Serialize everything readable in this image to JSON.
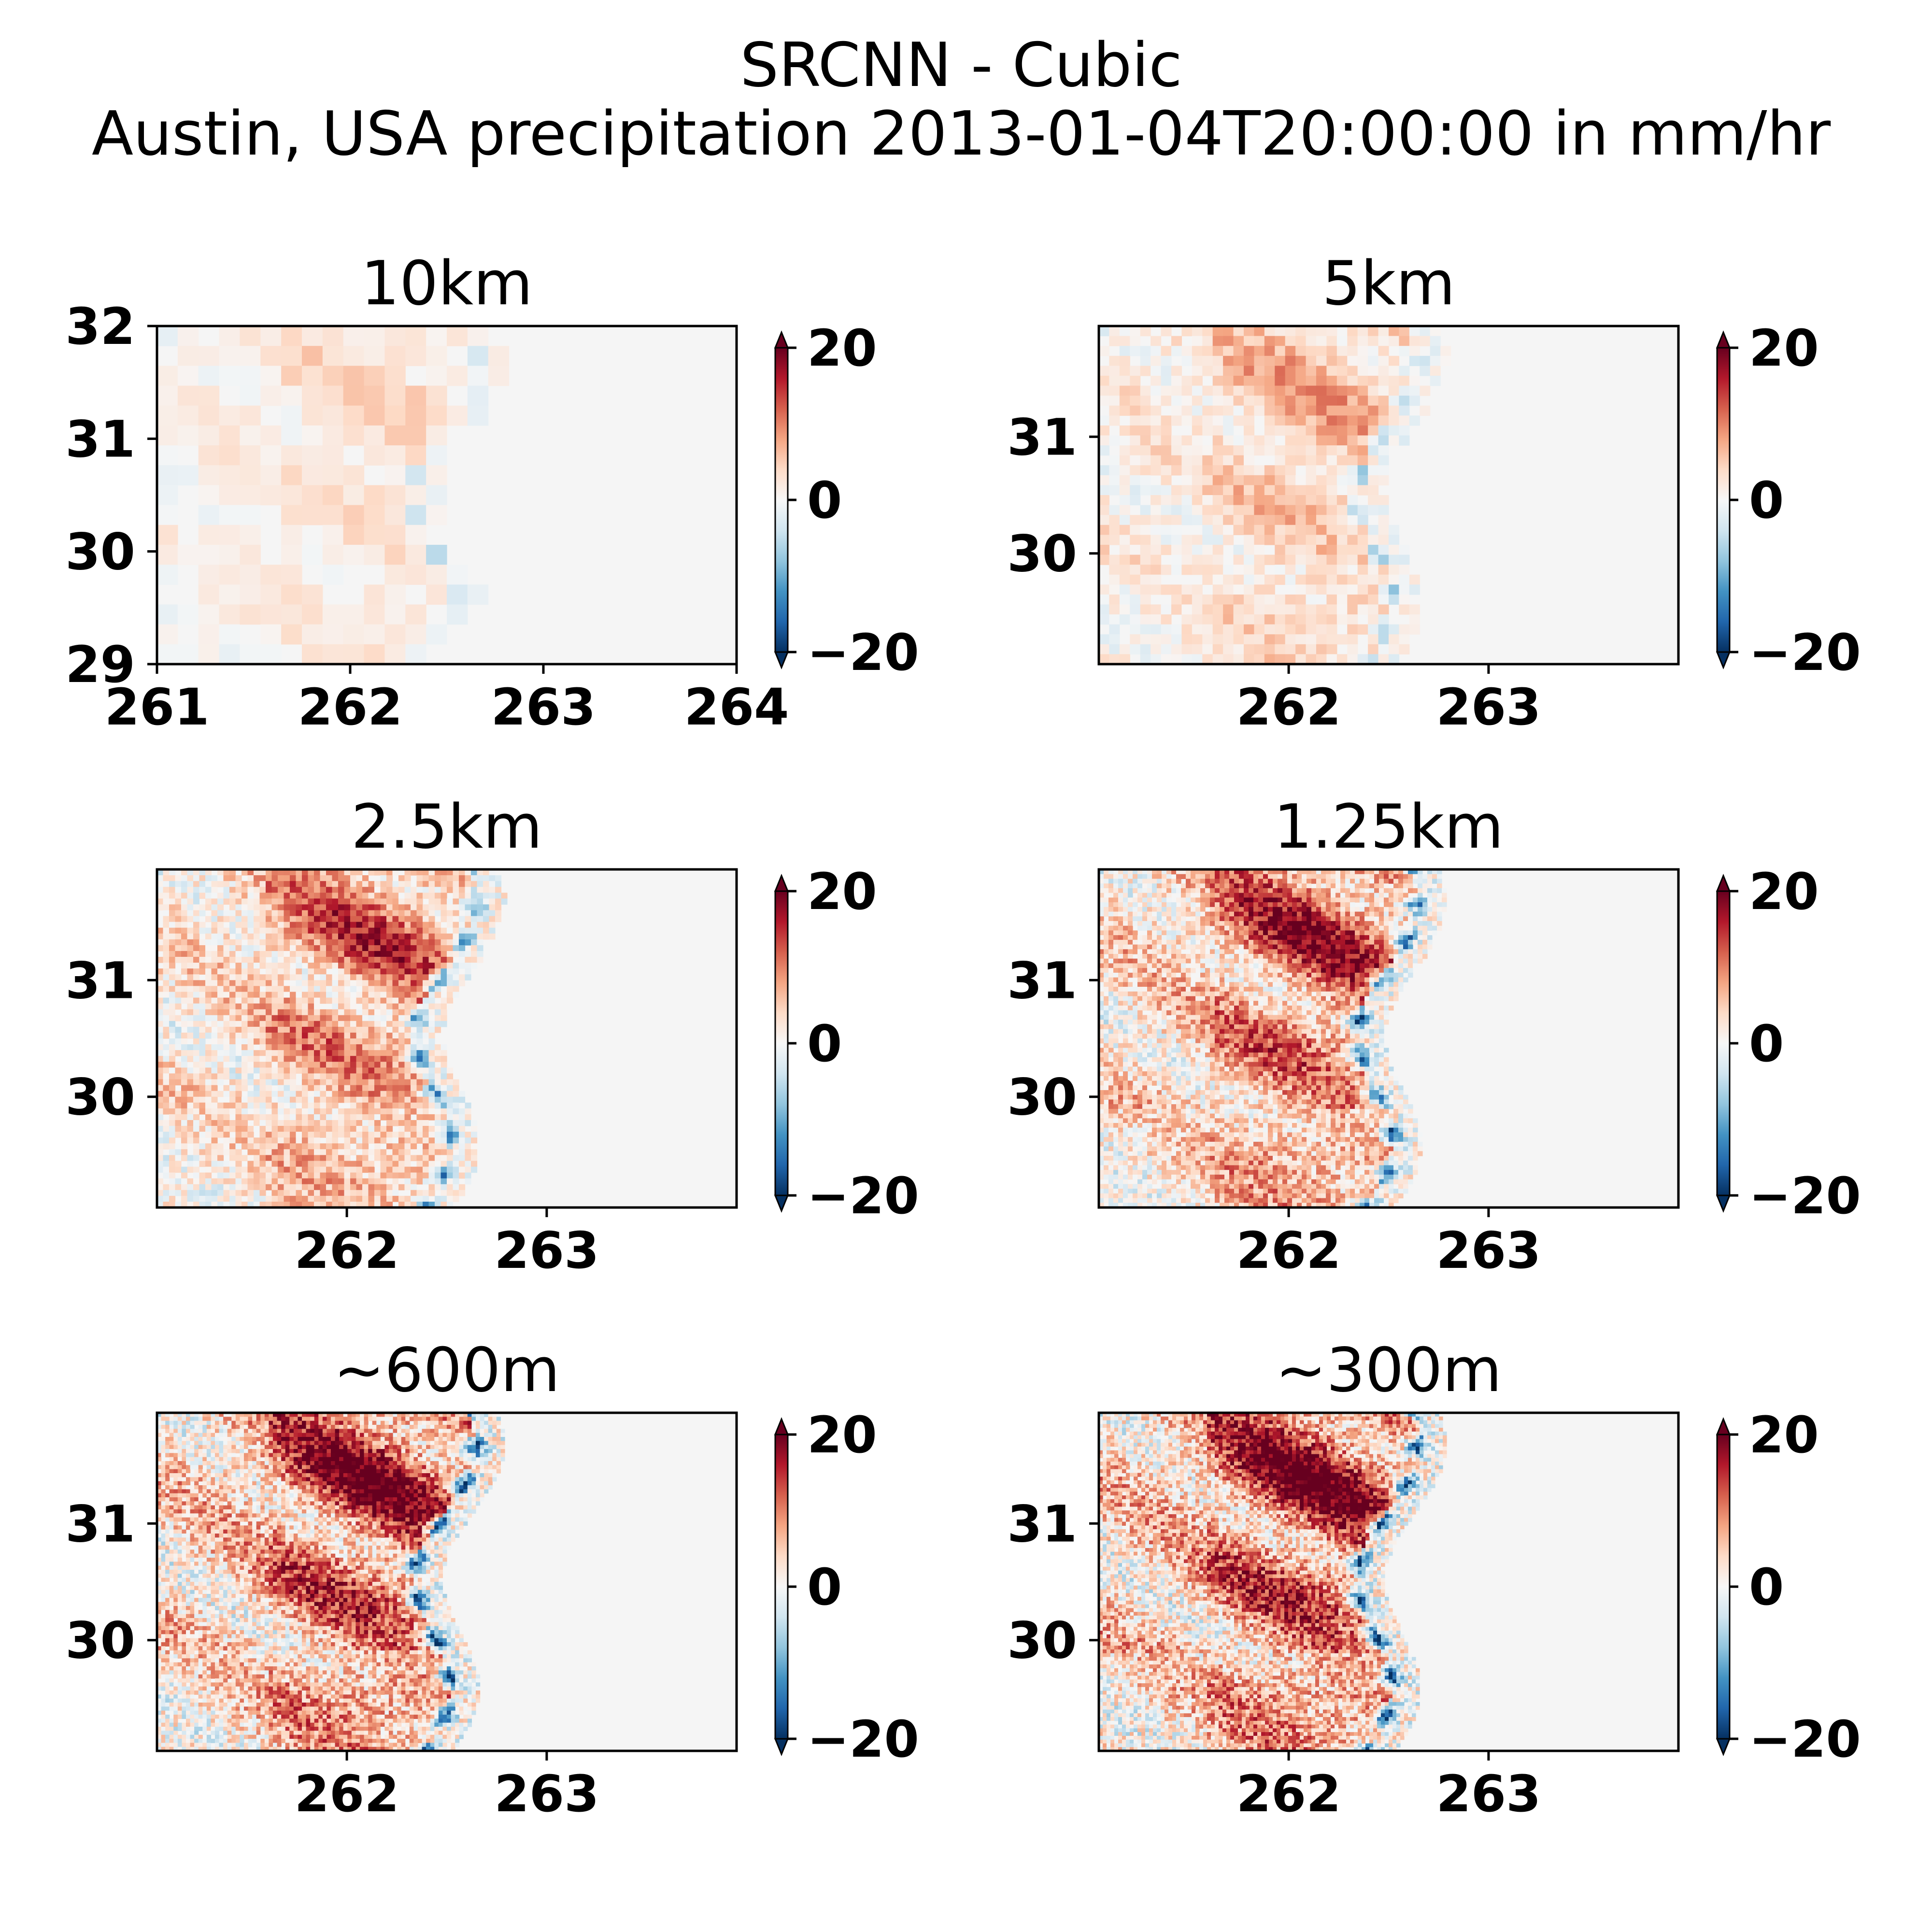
{
  "figure": {
    "title_line1": "SRCNN - Cubic",
    "title_line2": "Austin, USA precipitation 2013-01-04T20:00:00 in mm/hr"
  },
  "chart_data": [
    {
      "type": "heatmap",
      "title": "10km",
      "resolution": "10km",
      "xlim": [
        261,
        264
      ],
      "ylim": [
        29,
        32
      ],
      "xticks": [
        261,
        262,
        263,
        264
      ],
      "yticks": [
        29,
        30,
        31,
        32
      ],
      "colorbar": {
        "min": -20,
        "max": 20,
        "ticks": [
          "20",
          "0",
          "−20"
        ],
        "colormap": "RdBu_r",
        "extend": "both"
      }
    },
    {
      "type": "heatmap",
      "title": "5km",
      "resolution": "5km",
      "xlim": [
        261.05,
        263.95
      ],
      "ylim": [
        29.05,
        31.95
      ],
      "xticks": [
        262,
        263
      ],
      "yticks": [
        30,
        31
      ],
      "colorbar": {
        "min": -20,
        "max": 20,
        "ticks": [
          "20",
          "0",
          "−20"
        ],
        "colormap": "RdBu_r",
        "extend": "both"
      }
    },
    {
      "type": "heatmap",
      "title": "2.5km",
      "resolution": "2.5km",
      "xlim": [
        261.05,
        263.95
      ],
      "ylim": [
        29.05,
        31.95
      ],
      "xticks": [
        262,
        263
      ],
      "yticks": [
        30,
        31
      ],
      "colorbar": {
        "min": -20,
        "max": 20,
        "ticks": [
          "20",
          "0",
          "−20"
        ],
        "colormap": "RdBu_r",
        "extend": "both"
      }
    },
    {
      "type": "heatmap",
      "title": "1.25km",
      "resolution": "1.25km",
      "xlim": [
        261.05,
        263.95
      ],
      "ylim": [
        29.05,
        31.95
      ],
      "xticks": [
        262,
        263
      ],
      "yticks": [
        30,
        31
      ],
      "colorbar": {
        "min": -20,
        "max": 20,
        "ticks": [
          "20",
          "0",
          "−20"
        ],
        "colormap": "RdBu_r",
        "extend": "both"
      }
    },
    {
      "type": "heatmap",
      "title": "~600m",
      "resolution": "~600m",
      "xlim": [
        261.05,
        263.95
      ],
      "ylim": [
        29.05,
        31.95
      ],
      "xticks": [
        262,
        263
      ],
      "yticks": [
        30,
        31
      ],
      "colorbar": {
        "min": -20,
        "max": 20,
        "ticks": [
          "20",
          "0",
          "−20"
        ],
        "colormap": "RdBu_r",
        "extend": "both"
      }
    },
    {
      "type": "heatmap",
      "title": "~300m",
      "resolution": "~300m",
      "xlim": [
        261.05,
        263.95
      ],
      "ylim": [
        29.05,
        31.95
      ],
      "xticks": [
        262,
        263
      ],
      "yticks": [
        30,
        31
      ],
      "colorbar": {
        "min": -20,
        "max": 20,
        "ticks": [
          "20",
          "0",
          "−20"
        ],
        "colormap": "RdBu_r",
        "extend": "both"
      }
    }
  ]
}
